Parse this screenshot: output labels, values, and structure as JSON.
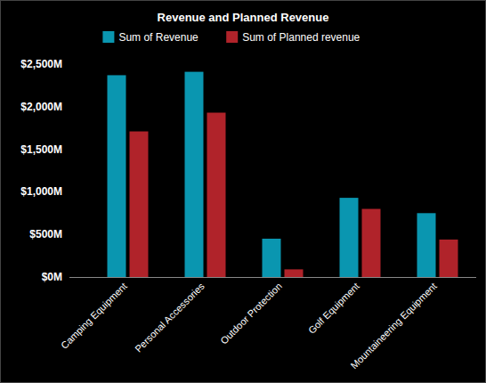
{
  "chart_data": {
    "type": "bar",
    "title": "Revenue and Planned Revenue",
    "categories": [
      "Camping Equipment",
      "Personal Accessories",
      "Outdoor Protection",
      "Golf Equipment",
      "Mountaineering Equipment"
    ],
    "series": [
      {
        "name": "Sum of Revenue",
        "color": "#0a96b0",
        "values": [
          2370,
          2410,
          450,
          930,
          750
        ]
      },
      {
        "name": "Sum of Planned revenue",
        "color": "#b0232a",
        "values": [
          1710,
          1930,
          90,
          800,
          440
        ]
      }
    ],
    "ylim": [
      0,
      2500
    ],
    "yticks": [
      {
        "value": 0,
        "label": "$0M"
      },
      {
        "value": 500,
        "label": "$500M"
      },
      {
        "value": 1000,
        "label": "$1,000M"
      },
      {
        "value": 1500,
        "label": "$1,500M"
      },
      {
        "value": 2000,
        "label": "$2,000M"
      },
      {
        "value": 2500,
        "label": "$2,500M"
      }
    ],
    "grid": false,
    "legend": "top"
  }
}
